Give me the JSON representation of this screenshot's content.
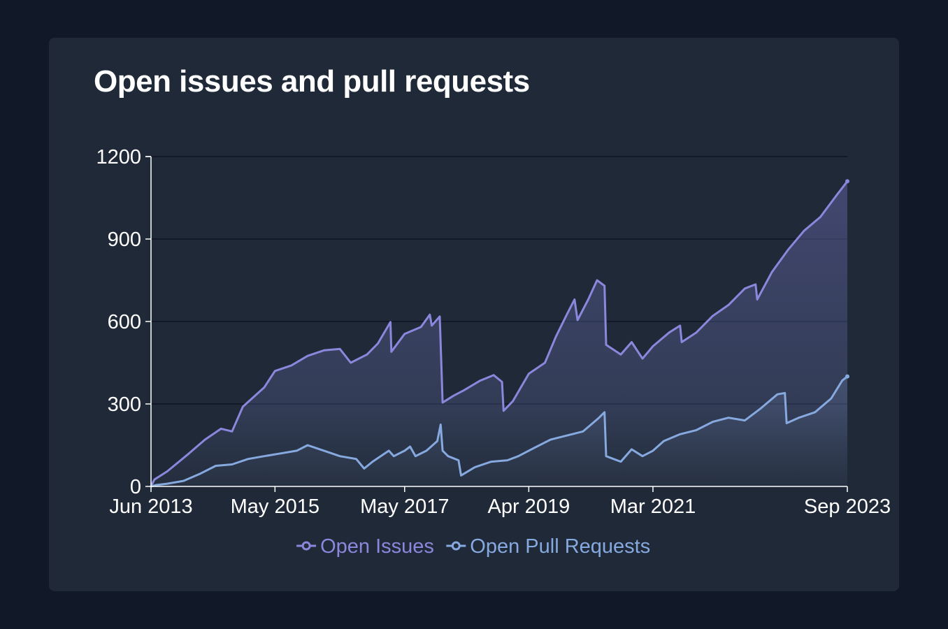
{
  "title": "Open issues and pull requests",
  "colors": {
    "background": "#111827",
    "card": "#1f2937",
    "issues": "#8b87dc",
    "pulls": "#86a9df",
    "grid": "#111827",
    "axis": "#ffffff"
  },
  "chart_data": {
    "type": "area",
    "x_type": "date",
    "ylim": [
      0,
      1200
    ],
    "xlim": [
      "2013-06-01",
      "2023-09-01"
    ],
    "yticks": [
      "0",
      "300",
      "600",
      "900",
      "1200"
    ],
    "xticks": [
      {
        "label": "Jun 2013",
        "date": "2013-06-01"
      },
      {
        "label": "May 2015",
        "date": "2015-05-01"
      },
      {
        "label": "May 2017",
        "date": "2017-05-01"
      },
      {
        "label": "Apr 2019",
        "date": "2019-04-01"
      },
      {
        "label": "Mar 2021",
        "date": "2021-03-01"
      },
      {
        "label": "Sep 2023",
        "date": "2023-09-01"
      }
    ],
    "grid": true,
    "legend": "bottom",
    "series": [
      {
        "name": "Open Issues",
        "color": "#8b87dc",
        "points": [
          [
            "2013-06-01",
            0
          ],
          [
            "2013-06-20",
            25
          ],
          [
            "2013-09-01",
            55
          ],
          [
            "2014-01-01",
            120
          ],
          [
            "2014-04-01",
            170
          ],
          [
            "2014-07-01",
            210
          ],
          [
            "2014-09-01",
            200
          ],
          [
            "2014-11-01",
            290
          ],
          [
            "2015-03-01",
            360
          ],
          [
            "2015-05-01",
            420
          ],
          [
            "2015-08-01",
            440
          ],
          [
            "2015-11-01",
            475
          ],
          [
            "2016-02-01",
            495
          ],
          [
            "2016-05-01",
            500
          ],
          [
            "2016-07-01",
            450
          ],
          [
            "2016-10-01",
            480
          ],
          [
            "2016-12-01",
            520
          ],
          [
            "2017-02-10",
            598
          ],
          [
            "2017-02-15",
            490
          ],
          [
            "2017-05-01",
            555
          ],
          [
            "2017-08-01",
            580
          ],
          [
            "2017-09-20",
            625
          ],
          [
            "2017-10-01",
            585
          ],
          [
            "2017-11-15",
            618
          ],
          [
            "2017-12-01",
            305
          ],
          [
            "2018-02-01",
            330
          ],
          [
            "2018-04-01",
            350
          ],
          [
            "2018-07-01",
            385
          ],
          [
            "2018-09-15",
            405
          ],
          [
            "2018-11-01",
            380
          ],
          [
            "2018-11-10",
            275
          ],
          [
            "2019-01-01",
            310
          ],
          [
            "2019-04-01",
            410
          ],
          [
            "2019-07-01",
            450
          ],
          [
            "2019-09-01",
            545
          ],
          [
            "2019-11-01",
            625
          ],
          [
            "2019-12-15",
            680
          ],
          [
            "2020-01-01",
            605
          ],
          [
            "2020-03-01",
            680
          ],
          [
            "2020-04-20",
            750
          ],
          [
            "2020-06-01",
            730
          ],
          [
            "2020-06-10",
            515
          ],
          [
            "2020-09-01",
            480
          ],
          [
            "2020-11-01",
            525
          ],
          [
            "2021-01-01",
            465
          ],
          [
            "2021-03-01",
            510
          ],
          [
            "2021-06-01",
            560
          ],
          [
            "2021-08-01",
            585
          ],
          [
            "2021-08-10",
            525
          ],
          [
            "2021-11-01",
            560
          ],
          [
            "2022-02-01",
            620
          ],
          [
            "2022-05-01",
            660
          ],
          [
            "2022-08-01",
            720
          ],
          [
            "2022-10-01",
            735
          ],
          [
            "2022-10-10",
            680
          ],
          [
            "2023-01-01",
            780
          ],
          [
            "2023-04-01",
            860
          ],
          [
            "2023-07-01",
            930
          ],
          [
            "2023-10-01",
            980
          ],
          [
            "2024-01-01",
            1060
          ],
          [
            "2024-03-01",
            1110
          ]
        ]
      },
      {
        "name": "Open Pull Requests",
        "color": "#86a9df",
        "points": [
          [
            "2013-06-01",
            0
          ],
          [
            "2013-07-01",
            5
          ],
          [
            "2013-09-01",
            10
          ],
          [
            "2013-12-01",
            20
          ],
          [
            "2014-03-01",
            45
          ],
          [
            "2014-06-01",
            75
          ],
          [
            "2014-09-01",
            80
          ],
          [
            "2014-12-01",
            100
          ],
          [
            "2015-03-01",
            110
          ],
          [
            "2015-06-01",
            120
          ],
          [
            "2015-09-01",
            130
          ],
          [
            "2015-11-01",
            150
          ],
          [
            "2016-02-01",
            130
          ],
          [
            "2016-05-01",
            110
          ],
          [
            "2016-08-01",
            100
          ],
          [
            "2016-09-15",
            65
          ],
          [
            "2016-11-01",
            90
          ],
          [
            "2017-02-01",
            130
          ],
          [
            "2017-03-01",
            110
          ],
          [
            "2017-05-01",
            130
          ],
          [
            "2017-06-01",
            145
          ],
          [
            "2017-07-01",
            110
          ],
          [
            "2017-09-01",
            130
          ],
          [
            "2017-11-01",
            165
          ],
          [
            "2017-11-20",
            225
          ],
          [
            "2017-12-01",
            130
          ],
          [
            "2018-01-01",
            110
          ],
          [
            "2018-03-01",
            95
          ],
          [
            "2018-03-15",
            40
          ],
          [
            "2018-06-01",
            70
          ],
          [
            "2018-09-01",
            90
          ],
          [
            "2018-12-01",
            95
          ],
          [
            "2019-02-01",
            110
          ],
          [
            "2019-05-01",
            140
          ],
          [
            "2019-08-01",
            170
          ],
          [
            "2019-11-01",
            185
          ],
          [
            "2020-02-01",
            200
          ],
          [
            "2020-05-01",
            250
          ],
          [
            "2020-06-01",
            270
          ],
          [
            "2020-06-10",
            110
          ],
          [
            "2020-09-01",
            90
          ],
          [
            "2020-11-01",
            135
          ],
          [
            "2021-01-01",
            110
          ],
          [
            "2021-03-01",
            130
          ],
          [
            "2021-05-01",
            165
          ],
          [
            "2021-08-01",
            190
          ],
          [
            "2021-11-01",
            205
          ],
          [
            "2022-02-01",
            235
          ],
          [
            "2022-05-01",
            250
          ],
          [
            "2022-08-01",
            240
          ],
          [
            "2022-11-01",
            285
          ],
          [
            "2023-02-01",
            335
          ],
          [
            "2023-03-15",
            340
          ],
          [
            "2023-03-25",
            230
          ],
          [
            "2023-06-01",
            250
          ],
          [
            "2023-09-01",
            270
          ],
          [
            "2023-12-01",
            320
          ],
          [
            "2024-02-01",
            385
          ],
          [
            "2024-03-01",
            400
          ]
        ]
      }
    ]
  }
}
